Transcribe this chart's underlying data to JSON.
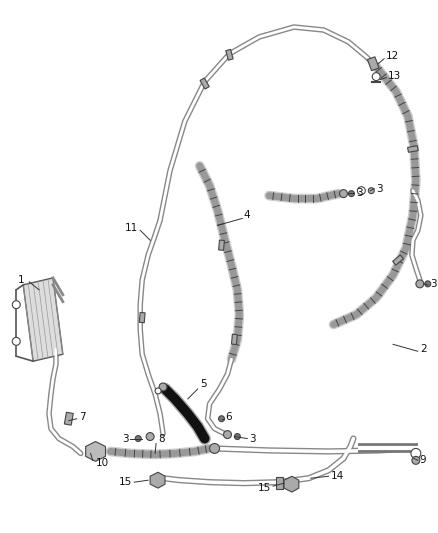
{
  "background_color": "#ffffff",
  "line_color": "#555555",
  "label_color": "#222222",
  "figsize": [
    4.38,
    5.33
  ],
  "dpi": 100,
  "component_color": "#666666",
  "wrap_color": "#888888",
  "dark_hose_color": "#1a1a1a",
  "double_hose_outer": "#aaaaaa",
  "double_hose_inner": "#ffffff"
}
